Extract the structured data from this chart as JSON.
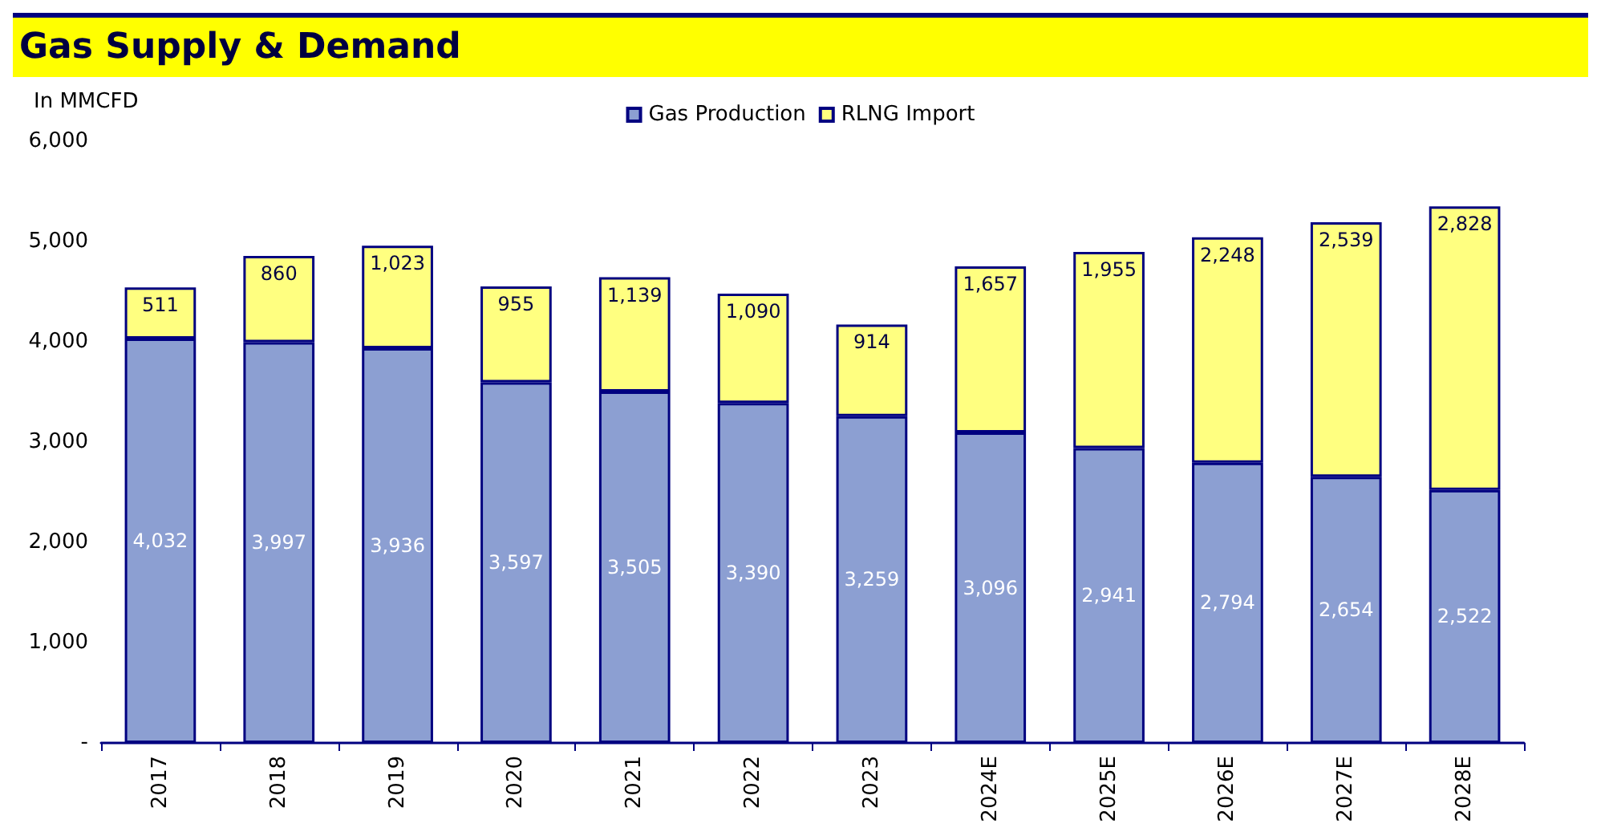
{
  "chart_data": {
    "type": "bar",
    "title": "Gas Supply & Demand",
    "ylabel": "In MMCFD",
    "stacked": true,
    "categories": [
      "2017",
      "2018",
      "2019",
      "2020",
      "2021",
      "2022",
      "2023",
      "2024E",
      "2025E",
      "2026E",
      "2027E",
      "2028E"
    ],
    "series": [
      {
        "name": "Gas Production",
        "color": "#8c9fd2",
        "values": [
          4032,
          3997,
          3936,
          3597,
          3505,
          3390,
          3259,
          3096,
          2941,
          2794,
          2654,
          2522
        ],
        "value_labels": [
          "4,032",
          "3,997",
          "3,936",
          "3,597",
          "3,505",
          "3,390",
          "3,259",
          "3,096",
          "2,941",
          "2,794",
          "2,654",
          "2,522"
        ]
      },
      {
        "name": "RLNG Import",
        "color": "#ffff80",
        "values": [
          511,
          860,
          1023,
          955,
          1139,
          1090,
          914,
          1657,
          1955,
          2248,
          2539,
          2828
        ],
        "value_labels": [
          "511",
          "860",
          "1,023",
          "955",
          "1,139",
          "1,090",
          "914",
          "1,657",
          "1,955",
          "2,248",
          "2,539",
          "2,828"
        ]
      }
    ],
    "ylim": [
      0,
      6000
    ],
    "yticks": [
      {
        "value": 0,
        "label": "-"
      },
      {
        "value": 1000,
        "label": "1,000"
      },
      {
        "value": 2000,
        "label": "2,000"
      },
      {
        "value": 3000,
        "label": "3,000"
      },
      {
        "value": 4000,
        "label": "4,000"
      },
      {
        "value": 5000,
        "label": "5,000"
      },
      {
        "value": 6000,
        "label": "6,000"
      }
    ],
    "legend": "top",
    "grid": false
  }
}
